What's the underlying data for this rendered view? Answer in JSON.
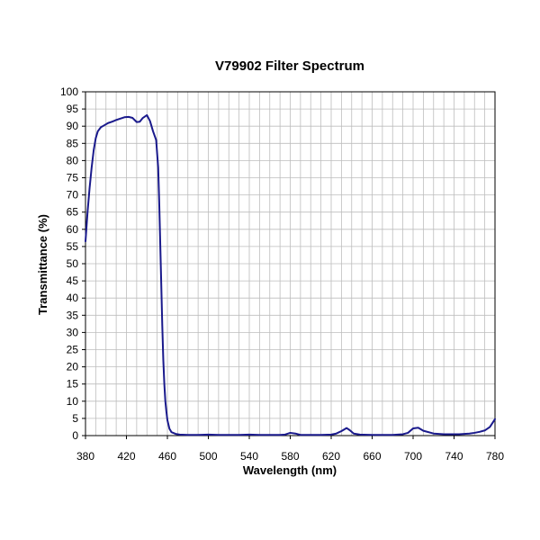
{
  "chart_data": {
    "type": "line",
    "title": "V79902 Filter  Spectrum",
    "xlabel": "Wavelength (nm)",
    "ylabel": "Transmittance (%)",
    "xlim": [
      380,
      780
    ],
    "ylim": [
      0,
      100
    ],
    "x_tick_labels": [
      "380",
      "420",
      "460",
      "500",
      "540",
      "580",
      "620",
      "660",
      "700",
      "740",
      "780"
    ],
    "y_tick_labels": [
      "0",
      "5",
      "10",
      "15",
      "20",
      "25",
      "30",
      "35",
      "40",
      "45",
      "50",
      "55",
      "60",
      "65",
      "70",
      "75",
      "80",
      "85",
      "90",
      "95",
      "100"
    ],
    "grid": true,
    "legend": "none",
    "line_color": "#1a1a8c",
    "series": [
      {
        "x": [
          380,
          382,
          384,
          386,
          388,
          390,
          392,
          395,
          398,
          402,
          406,
          410,
          414,
          418,
          422,
          426,
          430,
          433,
          436,
          440,
          443,
          446,
          449,
          451,
          452,
          453,
          454,
          455,
          456,
          457,
          458,
          459,
          460,
          462,
          464,
          468,
          472,
          480,
          490,
          500,
          510,
          520,
          530,
          540,
          550,
          560,
          570,
          575,
          580,
          585,
          590,
          600,
          610,
          620,
          625,
          630,
          635,
          638,
          642,
          648,
          660,
          670,
          680,
          690,
          695,
          700,
          705,
          710,
          720,
          730,
          740,
          745,
          750,
          755,
          760,
          765,
          770,
          775,
          780
        ],
        "y": [
          56.5,
          65,
          72,
          78,
          83,
          86.5,
          88.5,
          89.7,
          90.2,
          90.9,
          91.3,
          91.8,
          92.2,
          92.6,
          92.7,
          92.4,
          91.2,
          91.3,
          92.4,
          93.2,
          91.5,
          88.5,
          86,
          78,
          68,
          56,
          44,
          32,
          22,
          15,
          10,
          7,
          4.5,
          2,
          1,
          0.5,
          0.3,
          0.2,
          0.2,
          0.3,
          0.2,
          0.2,
          0.2,
          0.3,
          0.2,
          0.2,
          0.2,
          0.3,
          0.8,
          0.6,
          0.2,
          0.2,
          0.2,
          0.3,
          0.6,
          1.3,
          2.2,
          1.6,
          0.6,
          0.3,
          0.2,
          0.2,
          0.2,
          0.4,
          0.8,
          2.1,
          2.3,
          1.4,
          0.6,
          0.4,
          0.4,
          0.4,
          0.5,
          0.6,
          0.8,
          1.1,
          1.5,
          2.5,
          4.8
        ]
      }
    ]
  }
}
